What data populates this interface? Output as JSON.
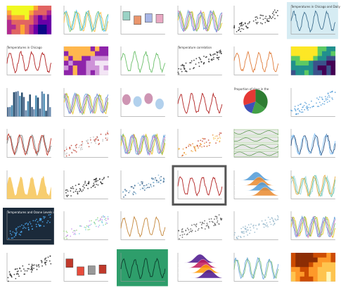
{
  "gallery": {
    "cols": 6,
    "rows": 7,
    "tiles": [
      {
        "type": "heatmap",
        "palette": [
          "#0d0887",
          "#6a00a8",
          "#b12a90",
          "#e16462",
          "#fca636",
          "#f0f921"
        ]
      },
      {
        "type": "line",
        "colors": [
          "#ffbf47",
          "#4fc3f7",
          "#81c784"
        ]
      },
      {
        "type": "box",
        "colors": [
          "#9bd3c6",
          "#e9956c",
          "#a8b6e6",
          "#e9a8c2"
        ]
      },
      {
        "type": "line",
        "colors": [
          "#e6c229",
          "#7fbf7f",
          "#c878c8",
          "#6fa8dc"
        ]
      },
      {
        "type": "scatter",
        "colors": [
          "#222222"
        ]
      },
      {
        "type": "line",
        "bg": "#d6ecf3",
        "colors": [
          "#3f6f8f"
        ],
        "title": "Temperatures in Chicago and Daily Temperatures"
      },
      {
        "type": "line",
        "colors": [
          "#b22222"
        ],
        "title": "Temperatures in Chicago"
      },
      {
        "type": "heatmap",
        "palette": [
          "#f3e5f5",
          "#ce93d8",
          "#8e24aa",
          "#ffb74d"
        ]
      },
      {
        "type": "line",
        "colors": [
          "#6abf69"
        ]
      },
      {
        "type": "scatter",
        "colors": [
          "#222222"
        ],
        "title": "Temperature correlation"
      },
      {
        "type": "line",
        "colors": [
          "#e07b39"
        ]
      },
      {
        "type": "heatmap",
        "palette": [
          "#440154",
          "#3b528b",
          "#21908d",
          "#5dc963",
          "#fde725"
        ]
      },
      {
        "type": "bar",
        "colors": [
          "#4f6d8f",
          "#6c8db0",
          "#4f8fb5",
          "#2b4f6f"
        ]
      },
      {
        "type": "line",
        "colors": [
          "#e6c229",
          "#7fbf7f",
          "#c878c8",
          "#6fa8dc"
        ]
      },
      {
        "type": "violin",
        "colors": [
          "#c27ba0",
          "#9fc5e8"
        ]
      },
      {
        "type": "line",
        "colors": [
          "#b22222"
        ]
      },
      {
        "type": "pie",
        "colors": [
          "#2e7d32",
          "#43a047",
          "#3f51b5",
          "#e53935"
        ],
        "title": "Proportion of days in the"
      },
      {
        "type": "scatter",
        "colors": [
          "#4f9bd8"
        ]
      },
      {
        "type": "line",
        "colors": [
          "#7f7f7f",
          "#c0392b"
        ]
      },
      {
        "type": "scatter",
        "colors": [
          "#bbbbbb",
          "#c0392b"
        ]
      },
      {
        "type": "line",
        "colors": [
          "#e6c229",
          "#7fbf7f",
          "#c878c8",
          "#6fa8dc"
        ]
      },
      {
        "type": "scatter",
        "colors": [
          "#f6c85f",
          "#e9892d",
          "#c0392b"
        ]
      },
      {
        "type": "small-multiples",
        "colors": [
          "#6ab04c",
          "#3d8b2b"
        ]
      },
      {
        "type": "line",
        "colors": [
          "#2c4f7c",
          "#90caf9"
        ]
      },
      {
        "type": "area",
        "colors": [
          "#f6c85f"
        ]
      },
      {
        "type": "scatter",
        "colors": [
          "#222222"
        ]
      },
      {
        "type": "scatter",
        "colors": [
          "#7fb3d5",
          "#1f4e79"
        ]
      },
      {
        "type": "line",
        "colors": [
          "#b22222"
        ],
        "framed": true
      },
      {
        "type": "ridgeline",
        "colors": [
          "#4f9bd8",
          "#e9892d"
        ]
      },
      {
        "type": "line",
        "colors": [
          "#9fd8df",
          "#6fc6a8",
          "#e8b04b"
        ]
      },
      {
        "type": "scatter",
        "bg": "#1b2a3a",
        "colors": [
          "#4fb3ff"
        ],
        "title": "Temperatures and Ozone Levels in Chicago"
      },
      {
        "type": "scatter",
        "colors": [
          "#c792ea",
          "#7fd1e0",
          "#98d67f"
        ]
      },
      {
        "type": "line",
        "colors": [
          "#c4863a"
        ]
      },
      {
        "type": "scatter",
        "colors": [
          "#555555"
        ]
      },
      {
        "type": "scatter",
        "colors": [
          "#8fb3c8"
        ]
      },
      {
        "type": "line",
        "colors": [
          "#e6c229",
          "#7fbf7f",
          "#c878c8",
          "#6fa8dc"
        ]
      },
      {
        "type": "scatter",
        "colors": [
          "#222222"
        ]
      },
      {
        "type": "box",
        "colors": [
          "#c0392b",
          "#e74c3c",
          "#999999"
        ]
      },
      {
        "type": "line",
        "bg": "#2e9e6b",
        "colors": [
          "#0b3d2c"
        ]
      },
      {
        "type": "ridgeline",
        "colors": [
          "#4a148c",
          "#c2185b",
          "#ff9800"
        ]
      },
      {
        "type": "line",
        "colors": [
          "#7fbf7f",
          "#6fa8dc"
        ]
      },
      {
        "type": "heatmap",
        "palette": [
          "#fff7bc",
          "#fec44f",
          "#fe9929",
          "#cc4c02",
          "#8c2d04"
        ]
      }
    ]
  }
}
